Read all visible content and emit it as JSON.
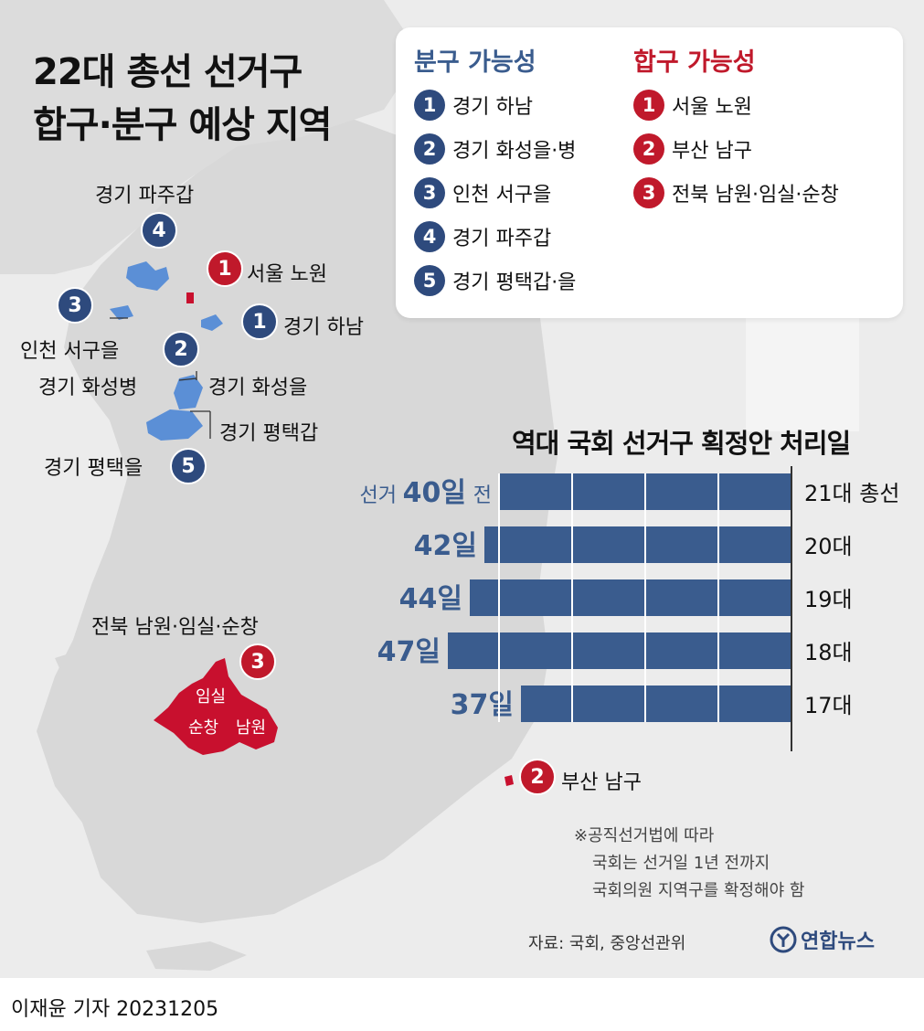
{
  "title_lines": [
    "22대 총선 선거구",
    "합구·분구 예상 지역"
  ],
  "legend": {
    "split_heading": "분구 가능성",
    "merge_heading": "합구 가능성",
    "split": [
      {
        "num": "1",
        "label": "경기 하남"
      },
      {
        "num": "2",
        "label": "경기 화성을·병"
      },
      {
        "num": "3",
        "label": "인천 서구을"
      },
      {
        "num": "4",
        "label": "경기 파주갑"
      },
      {
        "num": "5",
        "label": "경기 평택갑·을"
      }
    ],
    "merge": [
      {
        "num": "1",
        "label": "서울 노원"
      },
      {
        "num": "2",
        "label": "부산 남구"
      },
      {
        "num": "3",
        "label": "전북 남원·임실·순창"
      }
    ]
  },
  "map_labels": {
    "paju": "경기 파주갑",
    "seoul_nowon": "서울 노원",
    "hanam": "경기 하남",
    "incheon": "인천 서구을",
    "hwaseong_byeong": "경기 화성병",
    "hwaseong_eul": "경기 화성을",
    "pyeongtaek_gap": "경기 평택갑",
    "pyeongtaek_eul": "경기 평택을",
    "jeonbuk": "전북 남원·임실·순창",
    "imsil": "임실",
    "sunchang": "순창",
    "namwon": "남원",
    "busan": "부산 남구"
  },
  "badges": {
    "paju": "4",
    "seoul": "1",
    "hanam": "1",
    "incheon": "3",
    "hwaseong": "2",
    "pyeongtaek": "5",
    "jeonbuk": "3",
    "busan": "2"
  },
  "chart_data": {
    "type": "bar",
    "orientation": "horizontal",
    "title": "역대 국회 선거구 획정안 처리일",
    "prefix": "선거",
    "suffix": "전",
    "categories": [
      "21대 총선",
      "20대",
      "19대",
      "18대",
      "17대"
    ],
    "values": [
      40,
      42,
      44,
      47,
      37
    ],
    "value_labels": [
      "40일",
      "42일",
      "44일",
      "47일",
      "37일"
    ],
    "bar_color": "#3a5c8e",
    "grid": true
  },
  "footnote": [
    "※공직선거법에 따라",
    "국회는 선거일 1년 전까지",
    "국회의원 지역구를 확정해야 함"
  ],
  "source": "자료: 국회, 중앙선관위",
  "logo_text": "연합뉴스",
  "byline": "이재윤 기자  20231205",
  "colors": {
    "blue": "#2e4a7d",
    "red": "#c0192b",
    "map_blue": "#5b8fd6",
    "map_red": "#c8102e",
    "land": "#d6d6d6",
    "bg": "#ececec"
  }
}
